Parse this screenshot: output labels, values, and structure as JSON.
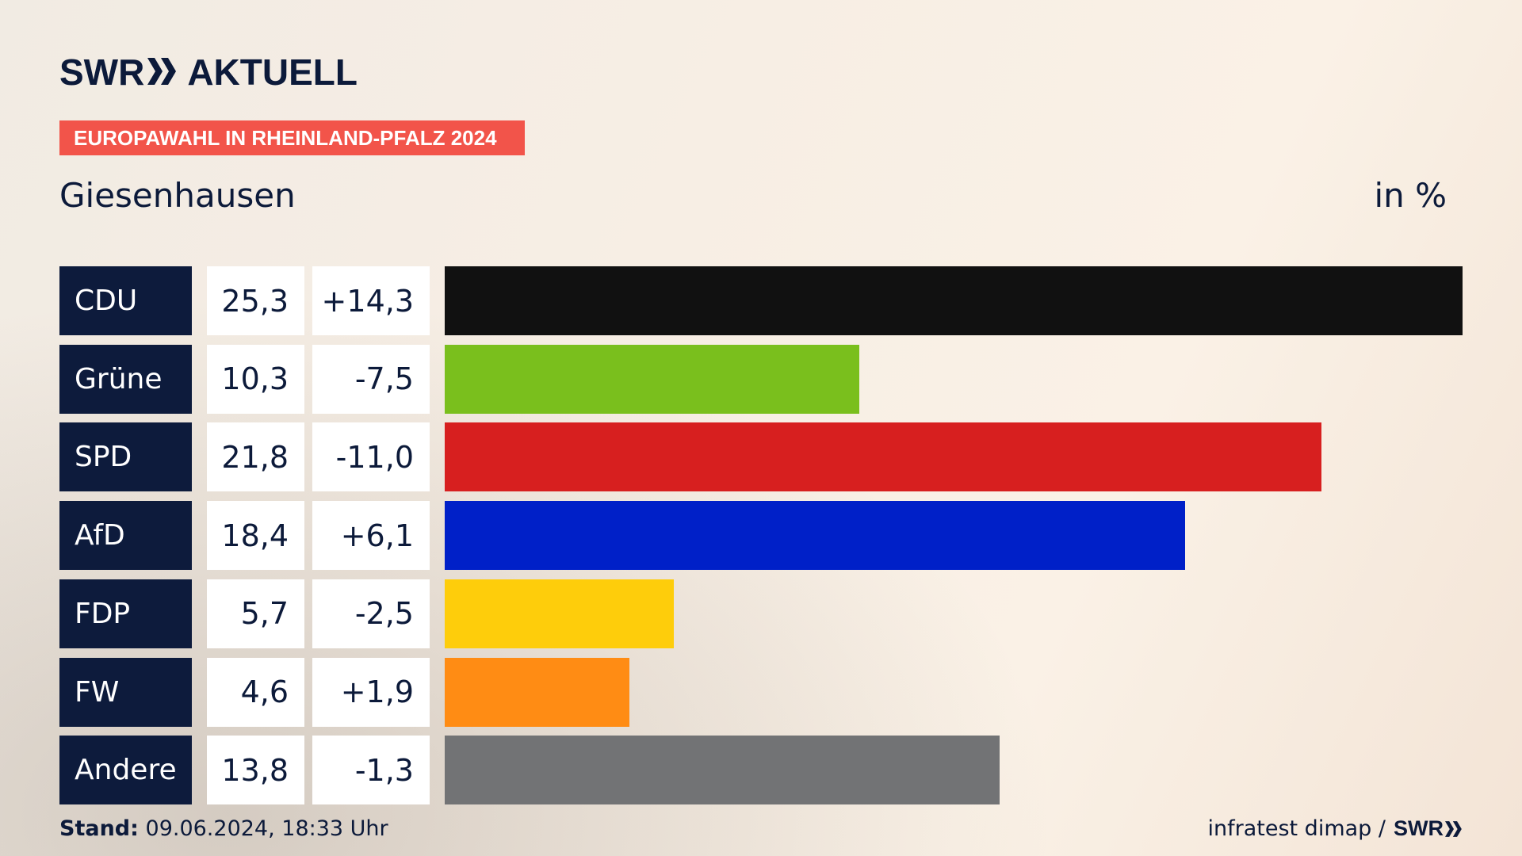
{
  "brand": {
    "name_left": "SWR",
    "name_right": "AKTUELL",
    "chevron": "double-chevron-icon",
    "color": "#0c1a3a"
  },
  "banner": {
    "text": "EUROPAWAHL IN RHEINLAND-PFALZ 2024",
    "color": "#f2544a"
  },
  "place": "Giesenhausen",
  "unit_label": "in %",
  "footer": {
    "stand_label": "Stand:",
    "stand_value": "09.06.2024, 18:33 Uhr",
    "source": "infratest dimap /",
    "source_brand": "SWR"
  },
  "chart_data": {
    "type": "bar",
    "orientation": "horizontal",
    "title": "Europawahl in Rheinland-Pfalz 2024 – Giesenhausen",
    "unit": "%",
    "categories": [
      "CDU",
      "Grüne",
      "SPD",
      "AfD",
      "FDP",
      "FW",
      "Andere"
    ],
    "values": [
      25.3,
      10.3,
      21.8,
      18.4,
      5.7,
      4.6,
      13.8
    ],
    "value_labels": [
      "25,3",
      "10,3",
      "21,8",
      "18,4",
      "5,7",
      "4,6",
      "13,8"
    ],
    "changes": [
      14.3,
      -7.5,
      -11.0,
      6.1,
      -2.5,
      1.9,
      -1.3
    ],
    "change_labels": [
      "+14,3",
      "-7,5",
      "-11,0",
      "+6,1",
      "-2,5",
      "+1,9",
      "-1,3"
    ],
    "colors": [
      "#111111",
      "#7abf1d",
      "#d71f1f",
      "#0020c8",
      "#fecd0b",
      "#ff8c14",
      "#727375"
    ],
    "xlim": [
      0,
      25.3
    ]
  }
}
